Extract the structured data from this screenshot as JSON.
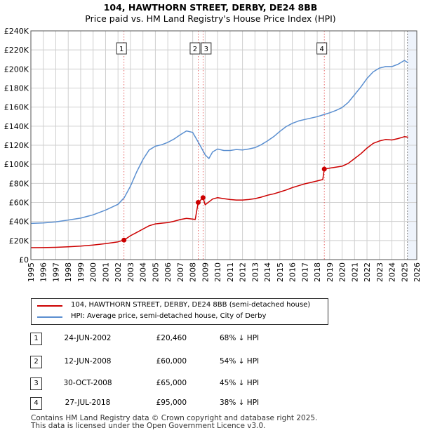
{
  "title": "104, HAWTHORN STREET, DERBY, DE24 8BB",
  "subtitle": "Price paid vs. HM Land Registry's House Price Index (HPI)",
  "colors": {
    "property": "#cc0000",
    "hpi": "#5b8fd0",
    "grid": "#cfcfcf",
    "marker_line": "#e04040",
    "shade": "#eef3fb"
  },
  "chart_data": {
    "type": "line",
    "x_range": [
      1995,
      2026
    ],
    "ylim": [
      0,
      240000
    ],
    "y_ticks": [
      0,
      20000,
      40000,
      60000,
      80000,
      100000,
      120000,
      140000,
      160000,
      180000,
      200000,
      220000,
      240000
    ],
    "y_tick_labels": [
      "£0",
      "£20K",
      "£40K",
      "£60K",
      "£80K",
      "£100K",
      "£120K",
      "£140K",
      "£160K",
      "£180K",
      "£200K",
      "£220K",
      "£240K"
    ],
    "x_tick_labels": [
      "1995",
      "1996",
      "1997",
      "1998",
      "1999",
      "2000",
      "2001",
      "2002",
      "2003",
      "2004",
      "2005",
      "2006",
      "2007",
      "2008",
      "2009",
      "2010",
      "2011",
      "2012",
      "2013",
      "2014",
      "2015",
      "2016",
      "2017",
      "2018",
      "2019",
      "2020",
      "2021",
      "2022",
      "2023",
      "2024",
      "2025",
      "2026"
    ],
    "shaded_region": [
      2025.25,
      2026
    ],
    "series": [
      {
        "name": "104, HAWTHORN STREET, DERBY, DE24 8BB (semi-detached house)",
        "points": [
          [
            1995.0,
            12500
          ],
          [
            1996.0,
            12600
          ],
          [
            1997.0,
            12900
          ],
          [
            1998.0,
            13400
          ],
          [
            1999.0,
            14100
          ],
          [
            2000.0,
            15300
          ],
          [
            2001.0,
            16700
          ],
          [
            2002.0,
            18600
          ],
          [
            2002.48,
            20460
          ],
          [
            2003.0,
            25000
          ],
          [
            2003.5,
            28500
          ],
          [
            2004.0,
            32000
          ],
          [
            2004.5,
            35500
          ],
          [
            2005.0,
            37500
          ],
          [
            2005.5,
            38200
          ],
          [
            2006.0,
            38800
          ],
          [
            2006.5,
            40200
          ],
          [
            2007.0,
            42000
          ],
          [
            2007.5,
            43200
          ],
          [
            2008.0,
            42500
          ],
          [
            2008.2,
            42000
          ],
          [
            2008.44,
            60000
          ],
          [
            2008.6,
            62000
          ],
          [
            2008.83,
            65000
          ],
          [
            2009.0,
            57500
          ],
          [
            2009.3,
            60500
          ],
          [
            2009.6,
            63500
          ],
          [
            2010.0,
            65000
          ],
          [
            2010.5,
            64000
          ],
          [
            2011.0,
            63000
          ],
          [
            2011.5,
            62500
          ],
          [
            2012.0,
            62500
          ],
          [
            2012.5,
            63000
          ],
          [
            2013.0,
            64000
          ],
          [
            2013.5,
            65500
          ],
          [
            2014.0,
            67500
          ],
          [
            2014.5,
            69000
          ],
          [
            2015.0,
            71000
          ],
          [
            2015.5,
            73000
          ],
          [
            2016.0,
            75500
          ],
          [
            2016.5,
            77500
          ],
          [
            2017.0,
            79500
          ],
          [
            2017.5,
            81000
          ],
          [
            2018.0,
            82500
          ],
          [
            2018.45,
            84000
          ],
          [
            2018.57,
            95000
          ],
          [
            2019.0,
            96000
          ],
          [
            2019.5,
            97000
          ],
          [
            2020.0,
            98000
          ],
          [
            2020.5,
            101000
          ],
          [
            2021.0,
            106000
          ],
          [
            2021.5,
            111000
          ],
          [
            2022.0,
            117000
          ],
          [
            2022.5,
            122000
          ],
          [
            2023.0,
            124500
          ],
          [
            2023.5,
            126000
          ],
          [
            2024.0,
            125500
          ],
          [
            2024.5,
            127000
          ],
          [
            2025.0,
            129000
          ],
          [
            2025.3,
            128500
          ]
        ]
      },
      {
        "name": "HPI: Average price, semi-detached house, City of Derby",
        "points": [
          [
            1995.0,
            38000
          ],
          [
            1996.0,
            38500
          ],
          [
            1997.0,
            39500
          ],
          [
            1998.0,
            41500
          ],
          [
            1999.0,
            43500
          ],
          [
            2000.0,
            47000
          ],
          [
            2001.0,
            52000
          ],
          [
            2002.0,
            58000
          ],
          [
            2002.5,
            65000
          ],
          [
            2003.0,
            77000
          ],
          [
            2003.5,
            92000
          ],
          [
            2004.0,
            105000
          ],
          [
            2004.5,
            115000
          ],
          [
            2005.0,
            119000
          ],
          [
            2005.5,
            120500
          ],
          [
            2006.0,
            123000
          ],
          [
            2006.5,
            126500
          ],
          [
            2007.0,
            131000
          ],
          [
            2007.5,
            135000
          ],
          [
            2008.0,
            133500
          ],
          [
            2008.5,
            122000
          ],
          [
            2009.0,
            110000
          ],
          [
            2009.3,
            106000
          ],
          [
            2009.6,
            113000
          ],
          [
            2010.0,
            116000
          ],
          [
            2010.5,
            114500
          ],
          [
            2011.0,
            114500
          ],
          [
            2011.5,
            115500
          ],
          [
            2012.0,
            115000
          ],
          [
            2012.5,
            116000
          ],
          [
            2013.0,
            117500
          ],
          [
            2013.5,
            120500
          ],
          [
            2014.0,
            124500
          ],
          [
            2014.5,
            129000
          ],
          [
            2015.0,
            134500
          ],
          [
            2015.5,
            139500
          ],
          [
            2016.0,
            143000
          ],
          [
            2016.5,
            145500
          ],
          [
            2017.0,
            147000
          ],
          [
            2017.5,
            148500
          ],
          [
            2018.0,
            150000
          ],
          [
            2018.5,
            152000
          ],
          [
            2019.0,
            154000
          ],
          [
            2019.5,
            156500
          ],
          [
            2020.0,
            159500
          ],
          [
            2020.5,
            165000
          ],
          [
            2021.0,
            173000
          ],
          [
            2021.5,
            181000
          ],
          [
            2022.0,
            190000
          ],
          [
            2022.5,
            197000
          ],
          [
            2023.0,
            201000
          ],
          [
            2023.5,
            202500
          ],
          [
            2024.0,
            202500
          ],
          [
            2024.5,
            205000
          ],
          [
            2025.0,
            209000
          ],
          [
            2025.3,
            206500
          ]
        ]
      }
    ],
    "sales": [
      {
        "label": "1",
        "x": 2002.48,
        "price": 20460
      },
      {
        "label": "2",
        "x": 2008.44,
        "price": 60000
      },
      {
        "label": "3",
        "x": 2008.83,
        "price": 65000
      },
      {
        "label": "4",
        "x": 2018.57,
        "price": 95000
      }
    ]
  },
  "legend": [
    {
      "label": "104, HAWTHORN STREET, DERBY, DE24 8BB (semi-detached house)"
    },
    {
      "label": "HPI: Average price, semi-detached house, City of Derby"
    }
  ],
  "transactions": [
    {
      "num": "1",
      "date": "24-JUN-2002",
      "price": "£20,460",
      "hpi": "68% ↓ HPI"
    },
    {
      "num": "2",
      "date": "12-JUN-2008",
      "price": "£60,000",
      "hpi": "54% ↓ HPI"
    },
    {
      "num": "3",
      "date": "30-OCT-2008",
      "price": "£65,000",
      "hpi": "45% ↓ HPI"
    },
    {
      "num": "4",
      "date": "27-JUL-2018",
      "price": "£95,000",
      "hpi": "38% ↓ HPI"
    }
  ],
  "footer": {
    "line1": "Contains HM Land Registry data © Crown copyright and database right 2025.",
    "line2": "This data is licensed under the Open Government Licence v3.0."
  }
}
